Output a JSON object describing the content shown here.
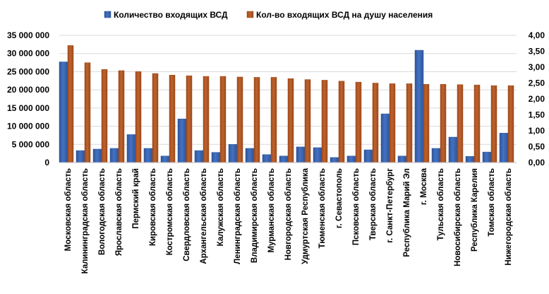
{
  "chart_data": {
    "type": "bar",
    "categories": [
      "Московская область",
      "Калининградская область",
      "Вологодская область",
      "Ярославская область",
      "Пермский край",
      "Кировская область",
      "Костромская область",
      "Свердловская область",
      "Архангельская область",
      "Калужская область",
      "Ленинградская область",
      "Владимирская область",
      "Мурманская область",
      "Новгородская область",
      "Удмуртская Республика",
      "Тюменская область",
      "г. Севастополь",
      "Псковская область",
      "Тверская область",
      "г. Санкт-Петербург",
      "Республика Марий Эл",
      "г. Москва",
      "Тульская область",
      "Новосибирская область",
      "Республика Карелия",
      "Томская область",
      "Нижегородская область"
    ],
    "series": [
      {
        "name": "Количество входящих ВСД",
        "axis": "left",
        "color": "#4472c4",
        "values": [
          27700000,
          3300000,
          3700000,
          3900000,
          7700000,
          3900000,
          1800000,
          12000000,
          3300000,
          2800000,
          5000000,
          3900000,
          2200000,
          1800000,
          4300000,
          4100000,
          1400000,
          1800000,
          3500000,
          13400000,
          1800000,
          30900000,
          3900000,
          7000000,
          1700000,
          2900000,
          8100000
        ]
      },
      {
        "name": "Кол-во входящих ВСД на душу населения",
        "axis": "right",
        "color": "#c0622c",
        "values": [
          3.68,
          3.14,
          2.93,
          2.89,
          2.86,
          2.8,
          2.75,
          2.73,
          2.71,
          2.71,
          2.69,
          2.68,
          2.68,
          2.64,
          2.61,
          2.59,
          2.56,
          2.53,
          2.5,
          2.48,
          2.48,
          2.46,
          2.46,
          2.45,
          2.44,
          2.42,
          2.42
        ]
      }
    ],
    "y_left": {
      "ylim": [
        0,
        35000000
      ],
      "ticks": [
        0,
        5000000,
        10000000,
        15000000,
        20000000,
        25000000,
        30000000,
        35000000
      ],
      "tick_labels": [
        "0",
        "5 000 000",
        "10 000 000",
        "15 000 000",
        "20 000 000",
        "25 000 000",
        "30 000 000",
        "35 000 000"
      ]
    },
    "y_right": {
      "ylim": [
        0,
        4
      ],
      "ticks": [
        0,
        0.5,
        1,
        1.5,
        2,
        2.5,
        3,
        3.5,
        4
      ],
      "tick_labels": [
        "0,00",
        "0,50",
        "1,00",
        "1,50",
        "2,00",
        "2,50",
        "3,00",
        "3,50",
        "4,00"
      ]
    },
    "grid": true,
    "legend_position": "top",
    "title": "",
    "xlabel": "",
    "ylabel": ""
  }
}
